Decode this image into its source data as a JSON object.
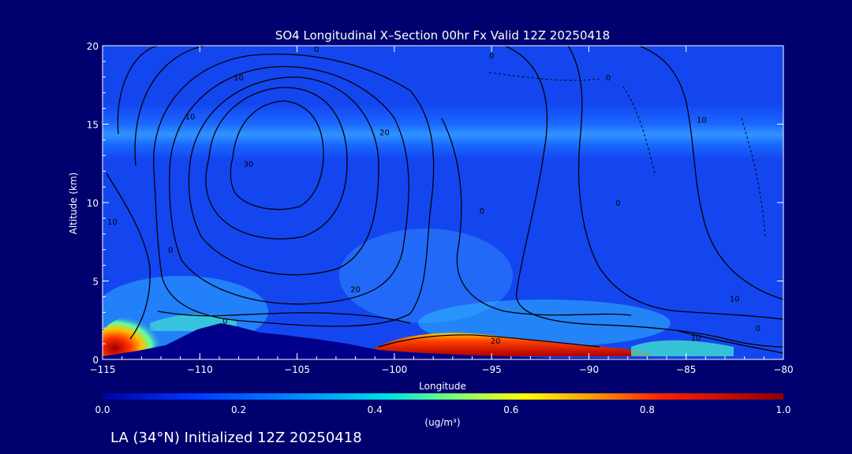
{
  "chart_data": {
    "type": "heatmap",
    "title": "SO4 Longitudinal X–Section 00hr  Fx Valid 12Z 20250418",
    "xlabel": "Longitude",
    "ylabel": "Altitude (km)",
    "xlim": [
      -115,
      -80
    ],
    "ylim": [
      0,
      20
    ],
    "xticks": [
      "−115",
      "−110",
      "−105",
      "−100",
      "−95",
      "−90",
      "−85",
      "−80"
    ],
    "yticks": [
      "0",
      "5",
      "10",
      "15",
      "20"
    ],
    "colorbar": {
      "min": 0.0,
      "max": 1.0,
      "ticks": [
        "0.0",
        "0.2",
        "0.4",
        "0.6",
        "0.8",
        "1.0"
      ],
      "label": "(ug/m³)"
    },
    "contour_labels": [
      {
        "text": "0",
        "lon": -104.0,
        "alt": 19.8
      },
      {
        "text": "0",
        "lon": -95.0,
        "alt": 19.4
      },
      {
        "text": "0",
        "lon": -89.0,
        "alt": 18.0
      },
      {
        "text": "10",
        "lon": -108.0,
        "alt": 18.0
      },
      {
        "text": "10",
        "lon": -110.5,
        "alt": 15.5
      },
      {
        "text": "20",
        "lon": -100.5,
        "alt": 14.5
      },
      {
        "text": "30",
        "lon": -107.5,
        "alt": 12.5
      },
      {
        "text": "0",
        "lon": -95.5,
        "alt": 9.5
      },
      {
        "text": "0",
        "lon": -88.5,
        "alt": 10.0
      },
      {
        "text": "10",
        "lon": -114.5,
        "alt": 8.8
      },
      {
        "text": "0",
        "lon": -111.5,
        "alt": 7.0
      },
      {
        "text": "20",
        "lon": -102.0,
        "alt": 4.5
      },
      {
        "text": "0",
        "lon": -108.7,
        "alt": 2.5
      },
      {
        "text": "20",
        "lon": -94.8,
        "alt": 1.2
      },
      {
        "text": "10",
        "lon": -82.5,
        "alt": 3.9
      },
      {
        "text": "0",
        "lon": -81.3,
        "alt": 2.0
      },
      {
        "text": "10",
        "lon": -84.5,
        "alt": 1.4
      },
      {
        "text": "10",
        "lon": -84.2,
        "alt": 15.3
      }
    ]
  },
  "footer": {
    "location_text": "LA (34°N) Initialized 12Z 20250418"
  },
  "colors": {
    "background": "#00006e",
    "field_base": "#1446f0",
    "terrain": "#00008b",
    "contour": "#000000"
  }
}
